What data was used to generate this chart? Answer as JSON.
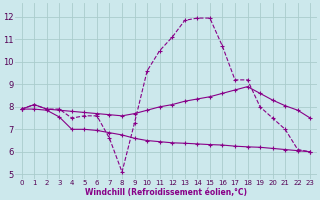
{
  "background_color": "#cce8ec",
  "grid_color": "#aacccc",
  "line_color": "#880088",
  "xlabel": "Windchill (Refroidissement éolien,°C)",
  "xlim": [
    -0.5,
    23.5
  ],
  "ylim": [
    4.8,
    12.6
  ],
  "yticks": [
    5,
    6,
    7,
    8,
    9,
    10,
    11,
    12
  ],
  "xticks": [
    0,
    1,
    2,
    3,
    4,
    5,
    6,
    7,
    8,
    9,
    10,
    11,
    12,
    13,
    14,
    15,
    16,
    17,
    18,
    19,
    20,
    21,
    22,
    23
  ],
  "line1_x": [
    0,
    1,
    2,
    3,
    4,
    5,
    6,
    7,
    8,
    9,
    10,
    11,
    12,
    13,
    14,
    15,
    16,
    17,
    18,
    19,
    20,
    21,
    22,
    23
  ],
  "line1_y": [
    7.9,
    8.1,
    7.9,
    7.9,
    7.5,
    7.6,
    7.6,
    6.6,
    5.1,
    7.3,
    9.6,
    10.5,
    11.1,
    11.85,
    11.95,
    11.95,
    10.7,
    9.2,
    9.2,
    8.0,
    7.5,
    7.0,
    6.1,
    6.0
  ],
  "line2_x": [
    0,
    1,
    2,
    3,
    4,
    5,
    6,
    7,
    8,
    9,
    10,
    11,
    12,
    13,
    14,
    15,
    16,
    17,
    18,
    19,
    20,
    21,
    22,
    23
  ],
  "line2_y": [
    7.9,
    8.1,
    7.9,
    7.85,
    7.8,
    7.75,
    7.7,
    7.65,
    7.6,
    7.7,
    7.85,
    8.0,
    8.1,
    8.25,
    8.35,
    8.45,
    8.6,
    8.75,
    8.9,
    8.6,
    8.3,
    8.05,
    7.85,
    7.5
  ],
  "line3_x": [
    0,
    1,
    2,
    3,
    4,
    5,
    6,
    7,
    8,
    9,
    10,
    11,
    12,
    13,
    14,
    15,
    16,
    17,
    18,
    19,
    20,
    21,
    22,
    23
  ],
  "line3_y": [
    7.9,
    7.9,
    7.85,
    7.55,
    7.0,
    7.0,
    6.95,
    6.85,
    6.75,
    6.6,
    6.5,
    6.45,
    6.4,
    6.38,
    6.35,
    6.32,
    6.3,
    6.25,
    6.22,
    6.2,
    6.15,
    6.1,
    6.05,
    6.0
  ]
}
